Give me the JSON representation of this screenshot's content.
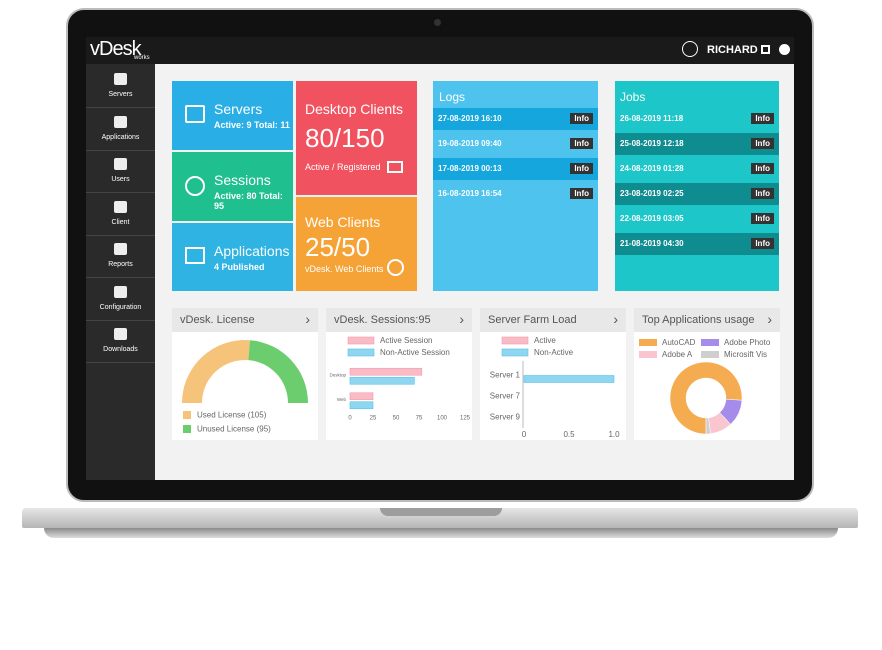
{
  "header": {
    "logo": "vDesk",
    "logo_sub": "works",
    "user": "RICHARD"
  },
  "sidebar": [
    "Servers",
    "Applications",
    "Users",
    "Client",
    "Reports",
    "Configuration",
    "Downloads"
  ],
  "tiles": [
    {
      "title": "Servers",
      "subtitle": "Active: 9  Total: 11"
    },
    {
      "title": "Sessions",
      "subtitle": "Active: 80 Total: 95"
    },
    {
      "title": "Applications",
      "subtitle": "4 Published"
    },
    {
      "title": "Desktop Clients",
      "value": "80/150",
      "subtitle": "Active / Registered"
    },
    {
      "title": "Web Clients",
      "value": "25/50",
      "subtitle": "vDesk. Web Clients"
    }
  ],
  "logs": {
    "title": "Logs",
    "items": [
      {
        "date": "27-08-2019 16:10",
        "tag": "Info"
      },
      {
        "date": "19-08-2019 09:40",
        "tag": "Info"
      },
      {
        "date": "17-08-2019 00:13",
        "tag": "Info"
      },
      {
        "date": "16-08-2019 16:54",
        "tag": "Info"
      }
    ]
  },
  "jobs": {
    "title": "Jobs",
    "items": [
      {
        "date": "26-08-2019 11:18",
        "tag": "Info"
      },
      {
        "date": "25-08-2019 12:18",
        "tag": "Info"
      },
      {
        "date": "24-08-2019 01:28",
        "tag": "Info"
      },
      {
        "date": "23-08-2019 02:25",
        "tag": "Info"
      },
      {
        "date": "22-08-2019 03:05",
        "tag": "Info"
      },
      {
        "date": "21-08-2019 04:30",
        "tag": "Info"
      }
    ]
  },
  "panels": [
    {
      "title": "vDesk. License",
      "chart": {
        "type": "half-donut",
        "values": [
          105,
          95
        ],
        "colors": [
          "#f6c37a",
          "#6ccd6e"
        ],
        "legend": [
          "Used License (105)",
          "Unused License (95)"
        ]
      }
    },
    {
      "title": "vDesk. Sessions:95",
      "chart": {
        "type": "hbar",
        "categories": [
          "Desktop",
          "Web"
        ],
        "series": [
          {
            "name": "Active Session",
            "color": "#f9bcc6",
            "values": [
              78,
              25
            ]
          },
          {
            "name": "Non-Active Session",
            "color": "#8fd6f0",
            "values": [
              70,
              25
            ]
          }
        ],
        "xlim": [
          0,
          125
        ],
        "xticks": [
          0,
          25,
          50,
          75,
          100,
          125
        ]
      }
    },
    {
      "title": "Server Farm Load",
      "chart": {
        "type": "hbar",
        "categories": [
          "Server 1",
          "Server 7",
          "Server 9"
        ],
        "series": [
          {
            "name": "Active",
            "color": "#f9bcc6",
            "values": [
              0,
              0,
              0
            ]
          },
          {
            "name": "Non-Active",
            "color": "#8fd6f0",
            "values": [
              1,
              0,
              0
            ]
          }
        ],
        "xlim": [
          0,
          1
        ],
        "xticks": [
          0,
          0.5,
          {
            "value": 1,
            "label": "1.0"
          }
        ]
      }
    },
    {
      "title": "Top Applications usage",
      "chart": {
        "type": "donut",
        "categories": [
          "AutoCAD",
          "Adobe Photo",
          "Adobe A",
          "Microsift Vis"
        ],
        "values": [
          76,
          12,
          10,
          2
        ],
        "colors": [
          "#f5ab4f",
          "#a58bea",
          "#f9c6cf",
          "#cfcfcf"
        ]
      }
    }
  ]
}
